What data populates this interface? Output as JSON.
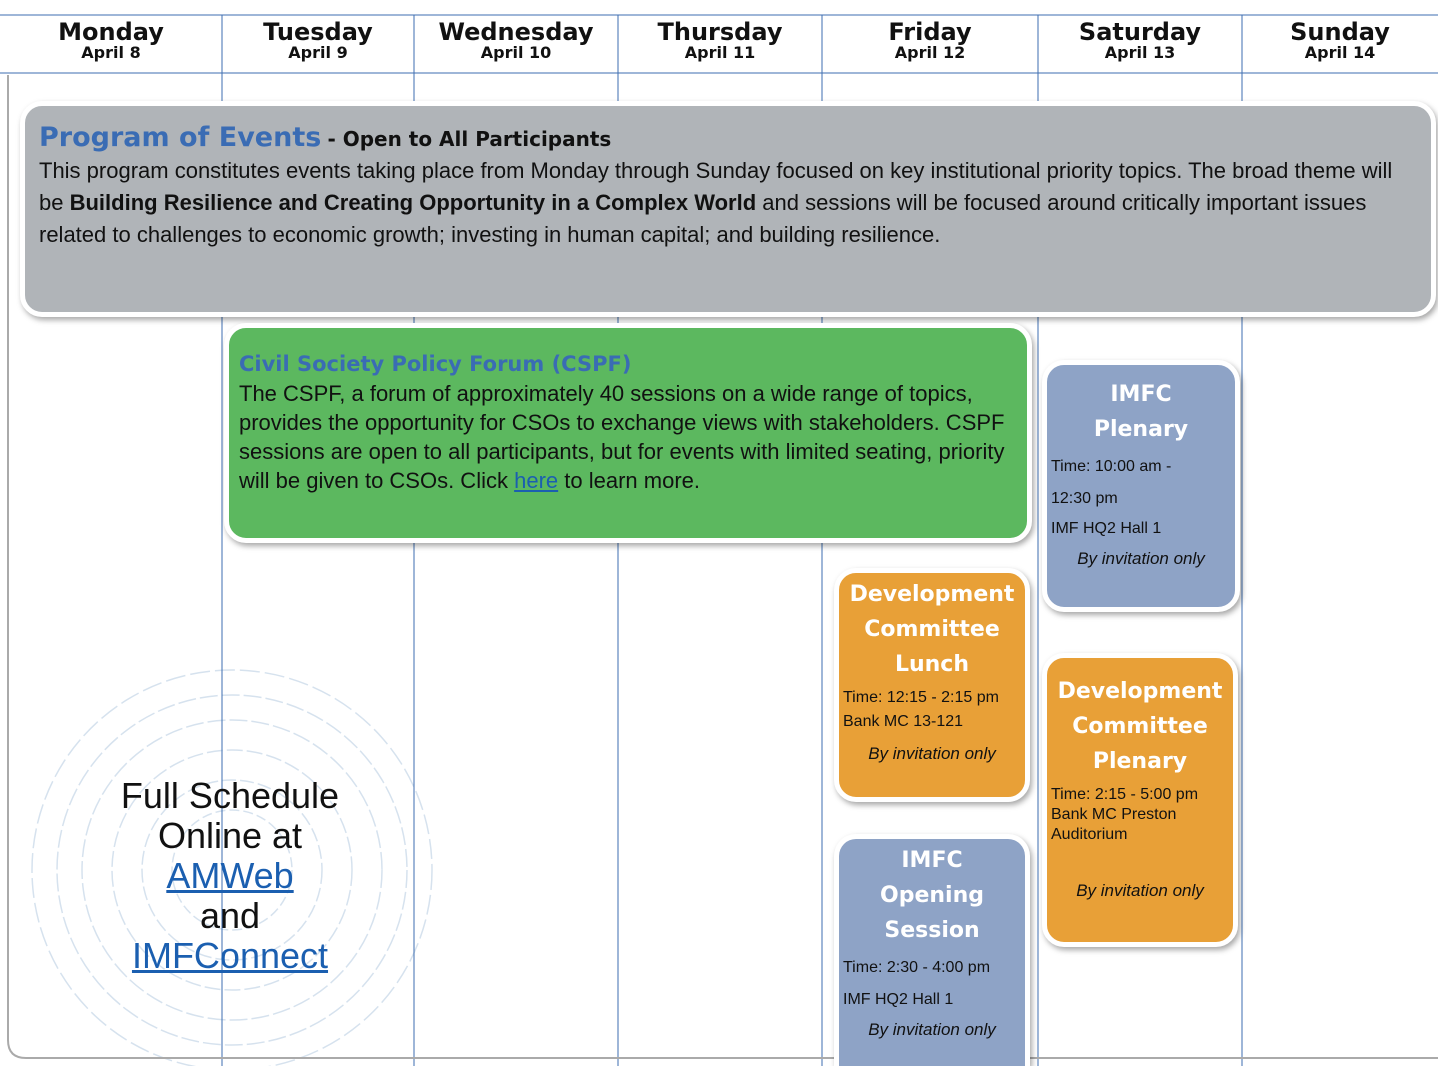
{
  "header": {
    "days": [
      {
        "name": "Monday",
        "date": "April 8"
      },
      {
        "name": "Tuesday",
        "date": "April 9"
      },
      {
        "name": "Wednesday",
        "date": "April 10"
      },
      {
        "name": "Thursday",
        "date": "April 11"
      },
      {
        "name": "Friday",
        "date": "April 12"
      },
      {
        "name": "Saturday",
        "date": "April 13"
      },
      {
        "name": "Sunday",
        "date": "April 14"
      }
    ]
  },
  "program": {
    "title": "Program of Events",
    "subtitle": "- Open to All Participants",
    "body_before": "This program constitutes events taking place from Monday through Sunday focused on key institutional priority topics. The broad theme will be",
    "body_bold": "Building Resilience and Creating Opportunity in a Complex World",
    "body_after": "and sessions will be focused around critically important issues related to challenges to economic growth; investing in human capital; and building resilience."
  },
  "cspf": {
    "title": "Civil Society Policy Forum (CSPF)",
    "body": "The CSPF, a forum of approximately 40 sessions on a wide range of topics, provides the opportunity for CSOs to exchange views with stakeholders. CSPF sessions are open to all participants, but for events with limited seating, priority will be given to CSOs. Click",
    "link": "here",
    "body_after": "to learn more."
  },
  "events": [
    {
      "title": "IMFC Plenary",
      "time": "Time: 10:00 am - 12:30 pm",
      "location": "IMF HQ2 Hall 1",
      "note": "By invitation only"
    },
    {
      "title": "Development Committee Lunch",
      "time": "Time: 12:15 - 2:15 pm",
      "location": "Bank MC 13-121",
      "note": "By invitation only"
    },
    {
      "title": "Development Committee Plenary",
      "time": "Time: 2:15 - 5:00 pm",
      "location": "Bank MC Preston Auditorium",
      "note": "By invitation only"
    },
    {
      "title": "IMFC Opening Session",
      "time": "Time: 2:30 - 4:00 pm",
      "location": "IMF HQ2 Hall 1",
      "note": "By invitation only"
    }
  ],
  "schedule": {
    "text": "Full Schedule Online at",
    "link1": "AMWeb",
    "and": "and",
    "link2": "IMFConnect"
  }
}
